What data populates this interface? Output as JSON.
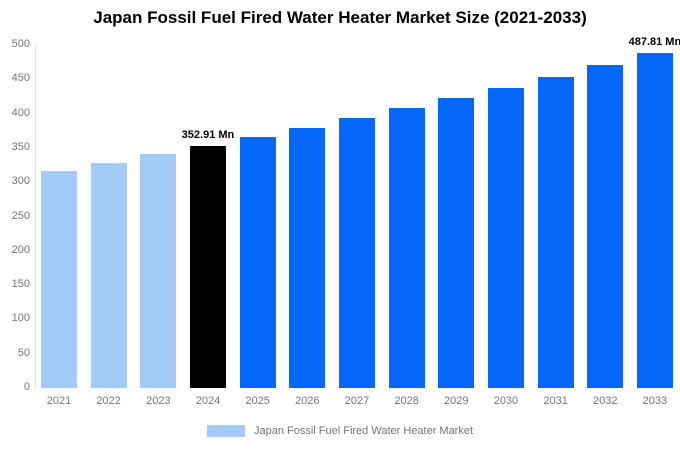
{
  "header": {
    "title": "Japan Fossil Fuel Fired Water Heater Market Size (2021-2033)"
  },
  "legend": {
    "label": "Japan Fossil Fuel Fired Water Heater Market",
    "swatch_color": "#a2cbf7"
  },
  "colors": {
    "historical_bar": "#a2cbf7",
    "base_year_bar": "#000000",
    "forecast_bar": "#0566fa",
    "axis_text": "#757575",
    "annotation_text": "#000000",
    "axis_line": "#e3e3e3",
    "background": "#ffffff"
  },
  "chart_data": {
    "type": "bar",
    "title": "Japan Fossil Fuel Fired Water Heater Market Size (2021-2033)",
    "xlabel": "",
    "ylabel": "",
    "unit": "Mn",
    "categories": [
      "2021",
      "2022",
      "2023",
      "2024",
      "2025",
      "2026",
      "2027",
      "2028",
      "2029",
      "2030",
      "2031",
      "2032",
      "2033"
    ],
    "values": [
      316.8,
      328.4,
      340.4,
      352.91,
      365.8,
      379.2,
      393.1,
      407.5,
      422.4,
      437.9,
      453.9,
      470.5,
      487.81
    ],
    "series": [
      {
        "name": "Japan Fossil Fuel Fired Water Heater Market",
        "values": [
          316.8,
          328.4,
          340.4,
          352.91,
          365.8,
          379.2,
          393.1,
          407.5,
          422.4,
          437.9,
          453.9,
          470.5,
          487.81
        ]
      }
    ],
    "bar_colors": [
      "#a2cbf7",
      "#a2cbf7",
      "#a2cbf7",
      "#000000",
      "#0566fa",
      "#0566fa",
      "#0566fa",
      "#0566fa",
      "#0566fa",
      "#0566fa",
      "#0566fa",
      "#0566fa",
      "#0566fa"
    ],
    "annotations": [
      {
        "index": 3,
        "category": "2024",
        "text": "352.91 Mn"
      },
      {
        "index": 12,
        "category": "2033",
        "text": "487.81 Mn"
      }
    ],
    "ylim": [
      0,
      500
    ],
    "ytick_step": 50,
    "ytick_labels": [
      "0",
      "50",
      "100",
      "150",
      "200",
      "250",
      "300",
      "350",
      "400",
      "450",
      "500"
    ],
    "grid": false,
    "legend_position": "bottom"
  }
}
